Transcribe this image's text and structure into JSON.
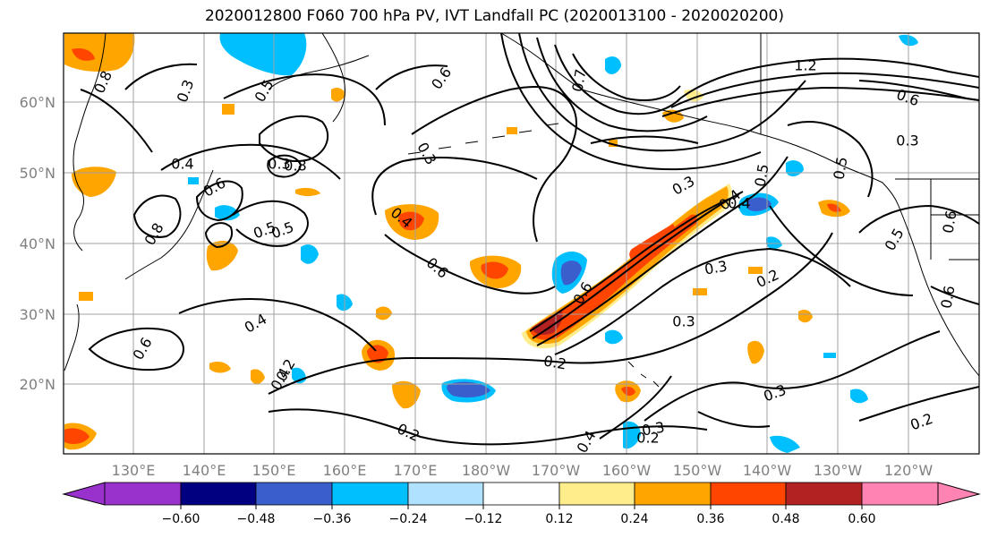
{
  "title": "2020012800 F060 700 hPa PV, IVT Landfall PC (2020013100 - 2020020200)",
  "map": {
    "lat_labels": [
      "60°N",
      "50°N",
      "40°N",
      "30°N",
      "20°N"
    ],
    "lon_labels": [
      "130°E",
      "140°E",
      "150°E",
      "160°E",
      "170°E",
      "180°W",
      "170°W",
      "160°W",
      "150°W",
      "140°W",
      "130°W",
      "120°W"
    ],
    "contour_labels": [
      "0.8",
      "0.3",
      "0.5",
      "0.6",
      "0.7",
      "0.4",
      "0.8",
      "0.6",
      "0.8",
      "0.5",
      "0.4",
      "0.3",
      "0.4",
      "0.6",
      "0.3",
      "0.6",
      "0.5",
      "0.4",
      "0.5",
      "1.2",
      "0.6",
      "0.3",
      "0.5",
      "0.6",
      "0.3",
      "0.4",
      "0.6",
      "0.3",
      "0.2",
      "0.4",
      "0.6",
      "0.2",
      "0.3",
      "0.2",
      "0.3",
      "0.2",
      "0.3",
      "0.2",
      "0.4",
      "0.2",
      "0.5"
    ]
  },
  "colorbar": {
    "ticks": [
      "−0.60",
      "−0.48",
      "−0.36",
      "−0.24",
      "−0.12",
      "0.12",
      "0.24",
      "0.36",
      "0.48",
      "0.60"
    ],
    "colors": [
      "#9932cc",
      "#000080",
      "#3a5fcd",
      "#00bfff",
      "#b0e2ff",
      "#ffffff",
      "#ffec8b",
      "#ffa500",
      "#ff4500",
      "#b22222",
      "#ff83b3"
    ]
  },
  "colors": {
    "orange": "#ffa500",
    "red_orange": "#ff4500",
    "dark_red": "#b22222",
    "light_yellow": "#ffec8b",
    "blue": "#00bfff",
    "royal_blue": "#3a5fcd",
    "navy": "#000080"
  }
}
